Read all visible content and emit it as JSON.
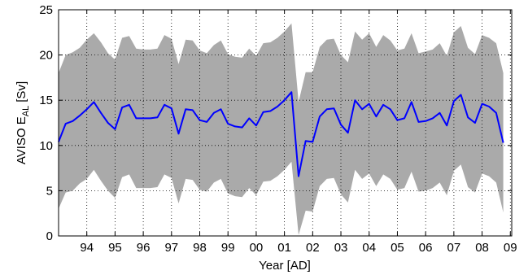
{
  "chart_data": {
    "type": "line",
    "title": "",
    "xlabel": "Year [AD]",
    "ylabel": {
      "main": "AVISO E",
      "subscript": "AL",
      "unit": "[Sv]"
    },
    "xlim": [
      1993.0,
      2009.05
    ],
    "ylim": [
      0,
      25
    ],
    "grid": true,
    "x_ticks": [
      {
        "value": 1994,
        "label": "94"
      },
      {
        "value": 1995,
        "label": "95"
      },
      {
        "value": 1996,
        "label": "96"
      },
      {
        "value": 1997,
        "label": "97"
      },
      {
        "value": 1998,
        "label": "98"
      },
      {
        "value": 1999,
        "label": "99"
      },
      {
        "value": 2000,
        "label": "00"
      },
      {
        "value": 2001,
        "label": "01"
      },
      {
        "value": 2002,
        "label": "02"
      },
      {
        "value": 2003,
        "label": "03"
      },
      {
        "value": 2004,
        "label": "04"
      },
      {
        "value": 2005,
        "label": "05"
      },
      {
        "value": 2006,
        "label": "06"
      },
      {
        "value": 2007,
        "label": "07"
      },
      {
        "value": 2008,
        "label": "08"
      },
      {
        "value": 2009,
        "label": "09"
      }
    ],
    "y_ticks": [
      0,
      5,
      10,
      15,
      20,
      25
    ],
    "colors": {
      "line": "#0000ff",
      "band": "#aaaaaa"
    },
    "series": [
      {
        "kind": "mean-line",
        "points": [
          [
            1993.0,
            10.4
          ],
          [
            1993.25,
            12.4
          ],
          [
            1993.5,
            12.7
          ],
          [
            1993.75,
            13.3
          ],
          [
            1994.0,
            14.0
          ],
          [
            1994.25,
            14.8
          ],
          [
            1994.5,
            13.6
          ],
          [
            1994.75,
            12.5
          ],
          [
            1995.0,
            11.8
          ],
          [
            1995.25,
            14.2
          ],
          [
            1995.5,
            14.5
          ],
          [
            1995.75,
            13.0
          ],
          [
            1996.0,
            13.0
          ],
          [
            1996.25,
            13.0
          ],
          [
            1996.5,
            13.1
          ],
          [
            1996.75,
            14.5
          ],
          [
            1997.0,
            14.1
          ],
          [
            1997.25,
            11.3
          ],
          [
            1997.5,
            14.0
          ],
          [
            1997.75,
            13.9
          ],
          [
            1998.0,
            12.8
          ],
          [
            1998.25,
            12.6
          ],
          [
            1998.5,
            13.6
          ],
          [
            1998.75,
            14.0
          ],
          [
            1999.0,
            12.4
          ],
          [
            1999.25,
            12.1
          ],
          [
            1999.5,
            12.0
          ],
          [
            1999.75,
            13.0
          ],
          [
            2000.0,
            12.2
          ],
          [
            2000.25,
            13.7
          ],
          [
            2000.5,
            13.8
          ],
          [
            2000.75,
            14.3
          ],
          [
            2001.0,
            15.0
          ],
          [
            2001.25,
            15.9
          ],
          [
            2001.5,
            6.6
          ],
          [
            2001.75,
            10.5
          ],
          [
            2002.0,
            10.4
          ],
          [
            2002.25,
            13.2
          ],
          [
            2002.5,
            14.0
          ],
          [
            2002.75,
            14.1
          ],
          [
            2003.0,
            12.3
          ],
          [
            2003.25,
            11.4
          ],
          [
            2003.5,
            15.0
          ],
          [
            2003.75,
            14.0
          ],
          [
            2004.0,
            14.6
          ],
          [
            2004.25,
            13.2
          ],
          [
            2004.5,
            14.5
          ],
          [
            2004.75,
            14.0
          ],
          [
            2005.0,
            12.8
          ],
          [
            2005.25,
            13.0
          ],
          [
            2005.5,
            14.8
          ],
          [
            2005.75,
            12.6
          ],
          [
            2006.0,
            12.7
          ],
          [
            2006.25,
            13.0
          ],
          [
            2006.5,
            13.6
          ],
          [
            2006.75,
            12.2
          ],
          [
            2007.0,
            14.9
          ],
          [
            2007.25,
            15.6
          ],
          [
            2007.5,
            13.1
          ],
          [
            2007.75,
            12.5
          ],
          [
            2008.0,
            14.6
          ],
          [
            2008.25,
            14.3
          ],
          [
            2008.5,
            13.6
          ],
          [
            2008.75,
            10.3
          ]
        ]
      },
      {
        "kind": "spread-band",
        "upper": [
          [
            1993.0,
            18.0
          ],
          [
            1993.25,
            20.0
          ],
          [
            1993.5,
            20.3
          ],
          [
            1993.75,
            20.8
          ],
          [
            1994.0,
            21.7
          ],
          [
            1994.25,
            22.4
          ],
          [
            1994.5,
            21.4
          ],
          [
            1994.75,
            20.2
          ],
          [
            1995.0,
            19.5
          ],
          [
            1995.25,
            21.9
          ],
          [
            1995.5,
            22.1
          ],
          [
            1995.75,
            20.7
          ],
          [
            1996.0,
            20.6
          ],
          [
            1996.25,
            20.6
          ],
          [
            1996.5,
            20.7
          ],
          [
            1996.75,
            22.2
          ],
          [
            1997.0,
            21.8
          ],
          [
            1997.25,
            19.0
          ],
          [
            1997.5,
            21.7
          ],
          [
            1997.75,
            21.6
          ],
          [
            1998.0,
            20.5
          ],
          [
            1998.25,
            20.2
          ],
          [
            1998.5,
            21.1
          ],
          [
            1998.75,
            21.6
          ],
          [
            1999.0,
            20.1
          ],
          [
            1999.25,
            19.8
          ],
          [
            1999.5,
            19.7
          ],
          [
            1999.75,
            20.7
          ],
          [
            2000.0,
            19.9
          ],
          [
            2000.25,
            21.3
          ],
          [
            2000.5,
            21.4
          ],
          [
            2000.75,
            21.9
          ],
          [
            2001.0,
            22.6
          ],
          [
            2001.25,
            23.5
          ],
          [
            2001.5,
            14.8
          ],
          [
            2001.75,
            18.1
          ],
          [
            2002.0,
            18.1
          ],
          [
            2002.25,
            20.9
          ],
          [
            2002.5,
            21.7
          ],
          [
            2002.75,
            21.8
          ],
          [
            2003.0,
            20.0
          ],
          [
            2003.25,
            19.2
          ],
          [
            2003.5,
            22.6
          ],
          [
            2003.75,
            21.7
          ],
          [
            2004.0,
            22.4
          ],
          [
            2004.25,
            20.9
          ],
          [
            2004.5,
            22.2
          ],
          [
            2004.75,
            21.6
          ],
          [
            2005.0,
            20.5
          ],
          [
            2005.25,
            20.7
          ],
          [
            2005.5,
            22.4
          ],
          [
            2005.75,
            20.2
          ],
          [
            2006.0,
            20.4
          ],
          [
            2006.25,
            20.6
          ],
          [
            2006.5,
            21.3
          ],
          [
            2006.75,
            19.9
          ],
          [
            2007.0,
            22.5
          ],
          [
            2007.25,
            23.2
          ],
          [
            2007.5,
            20.8
          ],
          [
            2007.75,
            20.1
          ],
          [
            2008.0,
            22.2
          ],
          [
            2008.25,
            21.9
          ],
          [
            2008.5,
            21.3
          ],
          [
            2008.75,
            18.0
          ]
        ],
        "lower": [
          [
            1993.0,
            3.0
          ],
          [
            1993.25,
            4.8
          ],
          [
            1993.5,
            5.0
          ],
          [
            1993.75,
            5.8
          ],
          [
            1994.0,
            6.3
          ],
          [
            1994.25,
            7.3
          ],
          [
            1994.5,
            6.1
          ],
          [
            1994.75,
            5.0
          ],
          [
            1995.0,
            4.2
          ],
          [
            1995.25,
            6.5
          ],
          [
            1995.5,
            6.8
          ],
          [
            1995.75,
            5.3
          ],
          [
            1996.0,
            5.3
          ],
          [
            1996.25,
            5.3
          ],
          [
            1996.5,
            5.4
          ],
          [
            1996.75,
            6.8
          ],
          [
            1997.0,
            6.4
          ],
          [
            1997.25,
            3.6
          ],
          [
            1997.5,
            6.3
          ],
          [
            1997.75,
            6.2
          ],
          [
            1998.0,
            5.1
          ],
          [
            1998.25,
            4.9
          ],
          [
            1998.5,
            5.9
          ],
          [
            1998.75,
            6.3
          ],
          [
            1999.0,
            4.7
          ],
          [
            1999.25,
            4.4
          ],
          [
            1999.5,
            4.3
          ],
          [
            1999.75,
            5.3
          ],
          [
            2000.0,
            4.5
          ],
          [
            2000.25,
            6.0
          ],
          [
            2000.5,
            6.1
          ],
          [
            2000.75,
            6.6
          ],
          [
            2001.0,
            7.3
          ],
          [
            2001.25,
            8.2
          ],
          [
            2001.5,
            0.1
          ],
          [
            2001.75,
            2.8
          ],
          [
            2002.0,
            2.7
          ],
          [
            2002.25,
            5.5
          ],
          [
            2002.5,
            6.3
          ],
          [
            2002.75,
            6.4
          ],
          [
            2003.0,
            4.6
          ],
          [
            2003.25,
            3.7
          ],
          [
            2003.5,
            7.3
          ],
          [
            2003.75,
            6.3
          ],
          [
            2004.0,
            6.9
          ],
          [
            2004.25,
            5.5
          ],
          [
            2004.5,
            6.8
          ],
          [
            2004.75,
            6.3
          ],
          [
            2005.0,
            5.1
          ],
          [
            2005.25,
            5.3
          ],
          [
            2005.5,
            7.1
          ],
          [
            2005.75,
            4.9
          ],
          [
            2006.0,
            5.0
          ],
          [
            2006.25,
            5.3
          ],
          [
            2006.5,
            5.9
          ],
          [
            2006.75,
            4.5
          ],
          [
            2007.0,
            7.2
          ],
          [
            2007.25,
            7.9
          ],
          [
            2007.5,
            5.4
          ],
          [
            2007.75,
            4.8
          ],
          [
            2008.0,
            6.9
          ],
          [
            2008.25,
            6.6
          ],
          [
            2008.5,
            5.9
          ],
          [
            2008.75,
            2.6
          ]
        ]
      }
    ]
  }
}
